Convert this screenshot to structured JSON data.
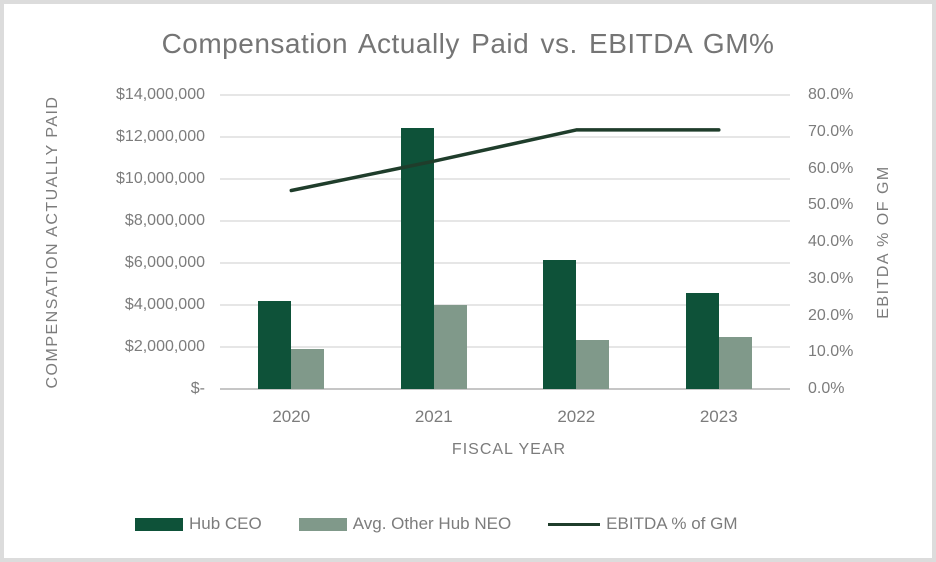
{
  "title": "Compensation Actually Paid vs. EBITDA GM%",
  "colors": {
    "bar_ceo": "#0e5239",
    "bar_neo": "#80998a",
    "line": "#1f3d2b",
    "gridline": "#e6e6e6",
    "axis_line": "#c6c6c6",
    "text_gray": "#7c7c7c",
    "border": "#dcdcdc"
  },
  "chart_data": {
    "type": "combo-bar-line",
    "title": "Compensation Actually Paid vs. EBITDA GM%",
    "categories": [
      "2020",
      "2021",
      "2022",
      "2023"
    ],
    "series": [
      {
        "name": "Hub CEO",
        "type": "bar",
        "axis": "left",
        "color": "#0e5239",
        "values": [
          4200000,
          12450000,
          6150000,
          4550000
        ]
      },
      {
        "name": "Avg. Other Hub NEO",
        "type": "bar",
        "axis": "left",
        "color": "#80998a",
        "values": [
          1900000,
          4000000,
          2350000,
          2500000
        ]
      },
      {
        "name": "EBITDA % of GM",
        "type": "line",
        "axis": "right",
        "color": "#1f3d2b",
        "values": [
          0.54,
          0.62,
          0.705,
          0.705
        ]
      }
    ],
    "left_axis": {
      "title": "COMPENSATION ACTUALLY PAID",
      "min": 0,
      "max": 14000000,
      "step": 2000000,
      "tick_labels": [
        "$-",
        "$2,000,000",
        "$4,000,000",
        "$6,000,000",
        "$8,000,000",
        "$10,000,000",
        "$12,000,000",
        "$14,000,000"
      ]
    },
    "right_axis": {
      "title": "EBITDA % OF GM",
      "min": 0,
      "max": 0.8,
      "step": 0.1,
      "tick_labels": [
        "0.0%",
        "10.0%",
        "20.0%",
        "30.0%",
        "40.0%",
        "50.0%",
        "60.0%",
        "70.0%",
        "80.0%"
      ]
    },
    "x_axis": {
      "title": "FISCAL YEAR"
    },
    "legend": [
      "Hub CEO",
      "Avg. Other Hub NEO",
      "EBITDA % of GM"
    ],
    "grid": true,
    "legend_position": "bottom"
  }
}
